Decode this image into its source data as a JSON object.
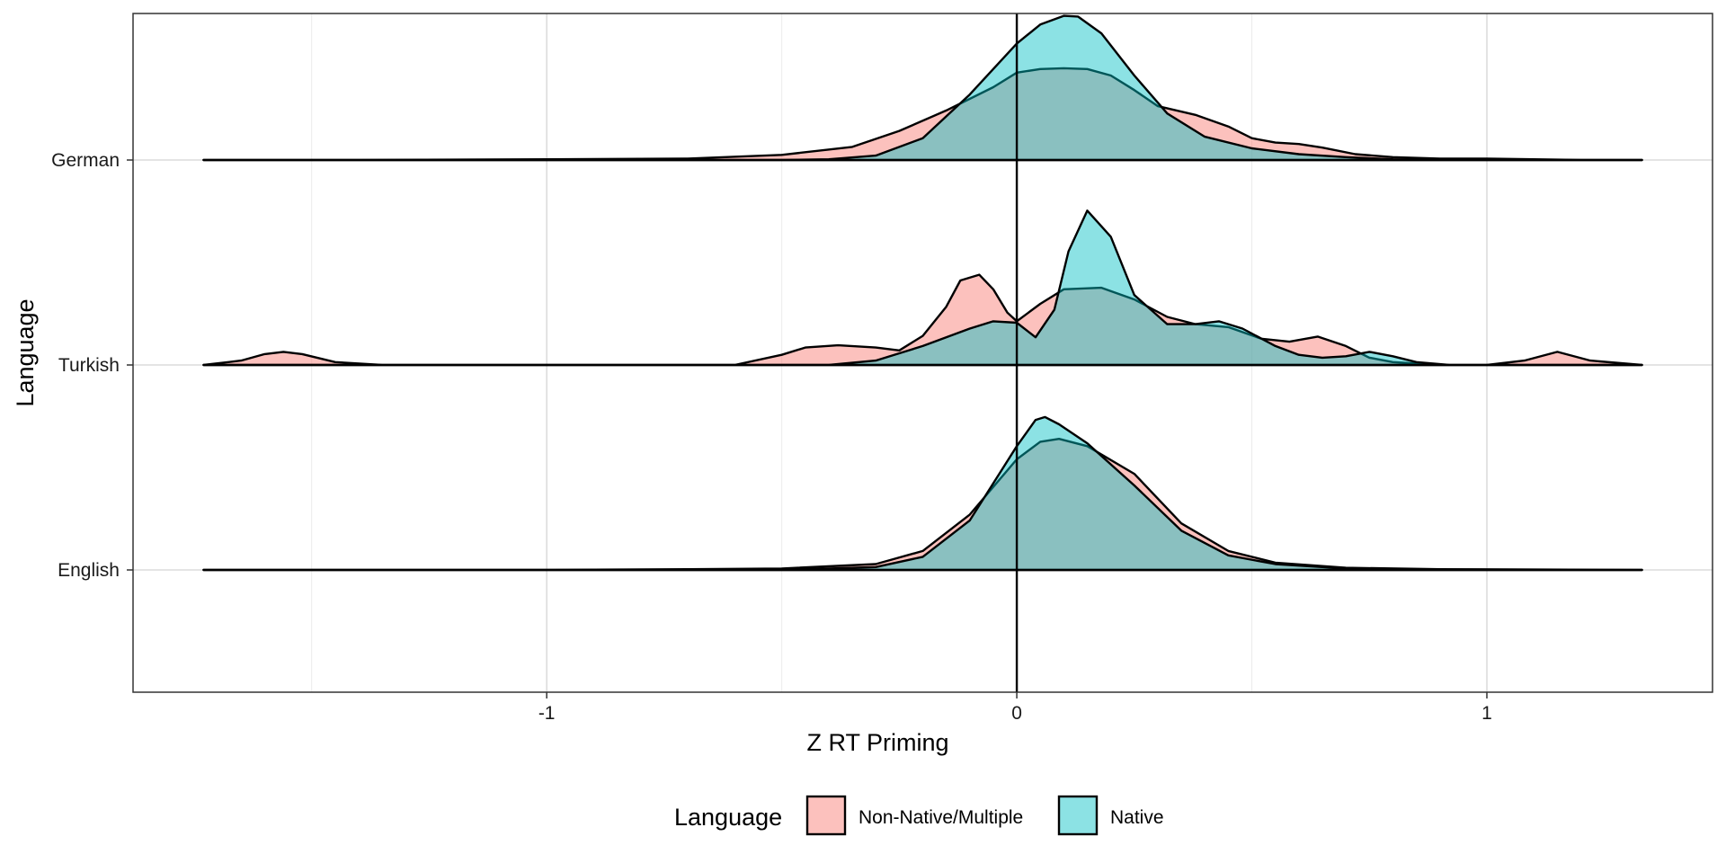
{
  "chart_data": {
    "type": "ridgeline-density",
    "title": "",
    "xlabel": "Z RT Priming",
    "ylabel": "Language",
    "xlim": [
      -1.88,
      1.48
    ],
    "x_ticks": [
      -1,
      0,
      1
    ],
    "x_tick_labels": [
      "-1",
      "0",
      "1"
    ],
    "categories": [
      "German",
      "Turkish",
      "English"
    ],
    "reference_line_x": 0,
    "grid": true,
    "legend": {
      "title": "Language",
      "position": "bottom",
      "entries": [
        {
          "label": "Non-Native/Multiple",
          "color": "#F8766D"
        },
        {
          "label": "Native",
          "color": "#00BFC4"
        }
      ]
    },
    "series": [
      {
        "category": "German",
        "group": "Non-Native/Multiple",
        "color": "#F8766D",
        "x": [
          -1.73,
          -1.4,
          -1.0,
          -0.7,
          -0.5,
          -0.35,
          -0.25,
          -0.15,
          -0.05,
          0.0,
          0.05,
          0.1,
          0.15,
          0.2,
          0.25,
          0.3,
          0.38,
          0.45,
          0.5,
          0.55,
          0.6,
          0.65,
          0.72,
          0.8,
          0.9,
          1.0,
          1.1,
          1.2,
          1.33
        ],
        "y": [
          0.0,
          0.0,
          0.005,
          0.01,
          0.035,
          0.09,
          0.2,
          0.34,
          0.5,
          0.6,
          0.625,
          0.63,
          0.625,
          0.58,
          0.48,
          0.37,
          0.31,
          0.23,
          0.15,
          0.12,
          0.11,
          0.085,
          0.04,
          0.02,
          0.01,
          0.01,
          0.005,
          0.0,
          0.0
        ]
      },
      {
        "category": "German",
        "group": "Native",
        "color": "#00BFC4",
        "x": [
          -1.73,
          -1.0,
          -0.5,
          -0.4,
          -0.3,
          -0.2,
          -0.1,
          0.0,
          0.05,
          0.1,
          0.13,
          0.18,
          0.25,
          0.32,
          0.4,
          0.5,
          0.6,
          0.7,
          0.8,
          1.0,
          1.33
        ],
        "y": [
          0.0,
          0.0,
          0.0,
          0.005,
          0.03,
          0.15,
          0.45,
          0.8,
          0.93,
          0.99,
          0.985,
          0.87,
          0.58,
          0.32,
          0.16,
          0.08,
          0.04,
          0.02,
          0.005,
          0.0,
          0.0
        ]
      },
      {
        "category": "Turkish",
        "group": "Non-Native/Multiple",
        "color": "#F8766D",
        "x": [
          -1.73,
          -1.65,
          -1.6,
          -1.56,
          -1.52,
          -1.45,
          -1.35,
          -0.6,
          -0.5,
          -0.45,
          -0.38,
          -0.3,
          -0.25,
          -0.2,
          -0.15,
          -0.12,
          -0.08,
          -0.05,
          -0.02,
          0.0,
          0.05,
          0.1,
          0.18,
          0.25,
          0.32,
          0.38,
          0.45,
          0.52,
          0.58,
          0.64,
          0.7,
          0.75,
          0.8,
          0.9,
          1.0,
          1.08,
          1.15,
          1.22,
          1.33
        ],
        "y": [
          0.0,
          0.03,
          0.075,
          0.09,
          0.075,
          0.02,
          0.0,
          0.0,
          0.07,
          0.12,
          0.135,
          0.12,
          0.1,
          0.2,
          0.4,
          0.58,
          0.62,
          0.52,
          0.36,
          0.3,
          0.42,
          0.52,
          0.53,
          0.45,
          0.33,
          0.28,
          0.26,
          0.18,
          0.16,
          0.195,
          0.13,
          0.05,
          0.02,
          0.0,
          0.0,
          0.03,
          0.09,
          0.03,
          0.0
        ]
      },
      {
        "category": "Turkish",
        "group": "Native",
        "color": "#00BFC4",
        "x": [
          -1.73,
          -0.4,
          -0.3,
          -0.2,
          -0.1,
          -0.05,
          0.0,
          0.04,
          0.08,
          0.11,
          0.15,
          0.2,
          0.25,
          0.32,
          0.38,
          0.43,
          0.48,
          0.55,
          0.6,
          0.65,
          0.7,
          0.75,
          0.8,
          0.85,
          0.92,
          1.33
        ],
        "y": [
          0.0,
          0.0,
          0.03,
          0.13,
          0.25,
          0.3,
          0.29,
          0.19,
          0.38,
          0.78,
          1.06,
          0.88,
          0.48,
          0.28,
          0.28,
          0.3,
          0.25,
          0.13,
          0.07,
          0.05,
          0.06,
          0.09,
          0.06,
          0.02,
          0.0,
          0.0
        ]
      },
      {
        "category": "English",
        "group": "Non-Native/Multiple",
        "color": "#F8766D",
        "x": [
          -1.73,
          -1.0,
          -0.7,
          -0.5,
          -0.3,
          -0.2,
          -0.1,
          0.0,
          0.05,
          0.09,
          0.15,
          0.25,
          0.35,
          0.45,
          0.55,
          0.7,
          0.9,
          1.33
        ],
        "y": [
          0.0,
          0.0,
          0.005,
          0.01,
          0.04,
          0.13,
          0.38,
          0.76,
          0.88,
          0.9,
          0.85,
          0.66,
          0.32,
          0.13,
          0.05,
          0.015,
          0.005,
          0.0
        ]
      },
      {
        "category": "English",
        "group": "Native",
        "color": "#00BFC4",
        "x": [
          -1.73,
          -0.5,
          -0.3,
          -0.2,
          -0.1,
          0.0,
          0.04,
          0.06,
          0.09,
          0.15,
          0.25,
          0.35,
          0.45,
          0.55,
          0.7,
          0.9,
          1.33
        ],
        "y": [
          0.0,
          0.0,
          0.02,
          0.09,
          0.34,
          0.85,
          1.03,
          1.05,
          1.0,
          0.87,
          0.58,
          0.27,
          0.1,
          0.04,
          0.01,
          0.0,
          0.0
        ]
      }
    ]
  }
}
